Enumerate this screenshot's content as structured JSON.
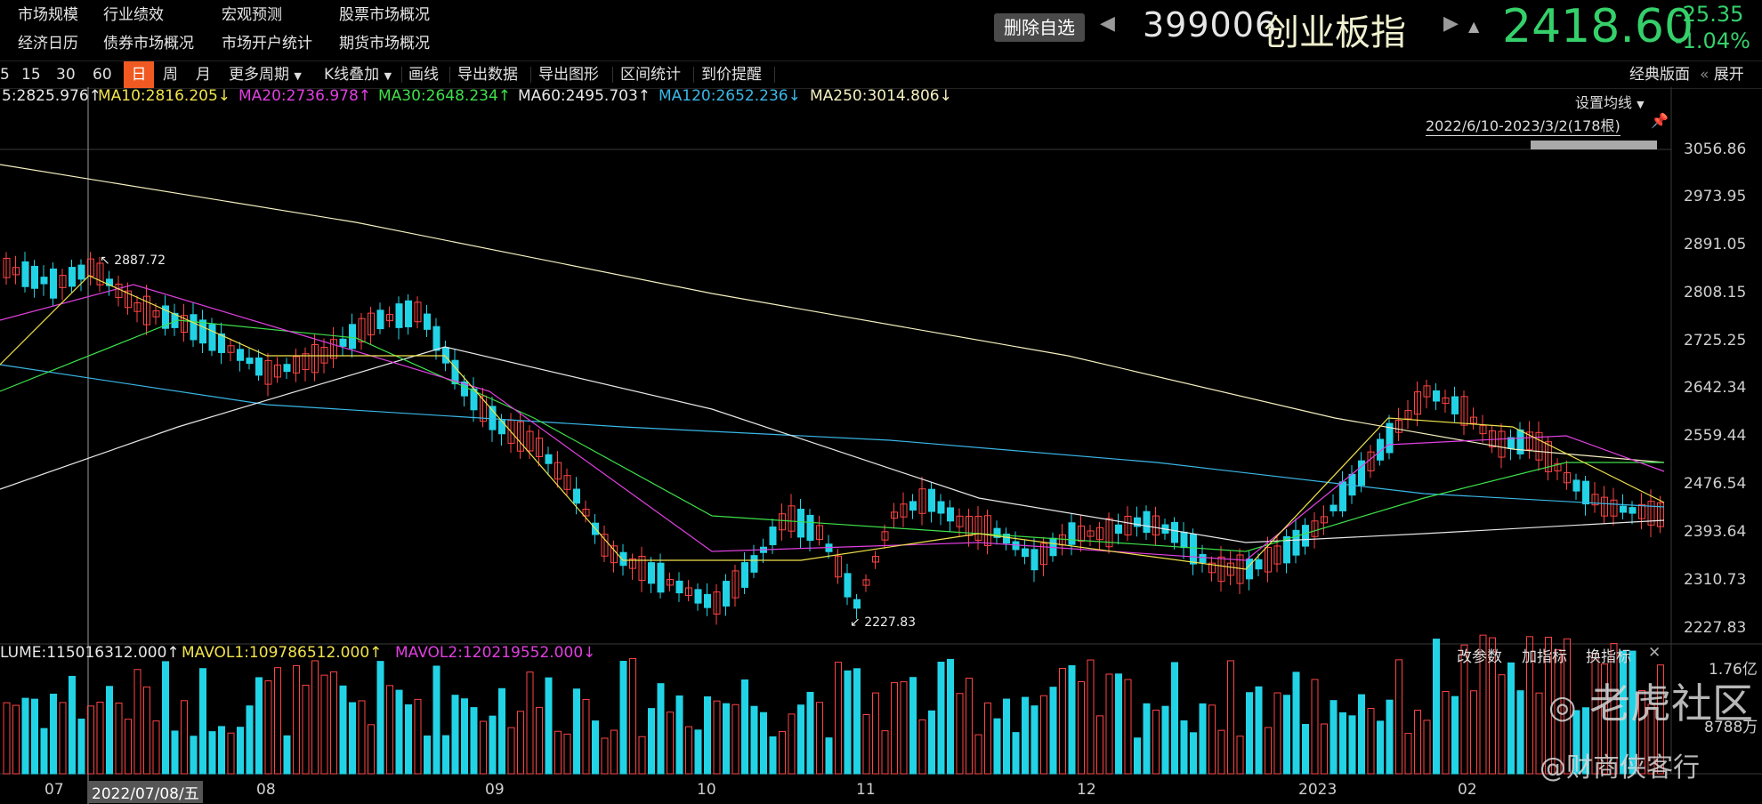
{
  "menu": {
    "row1": [
      "市场规模",
      "行业绩效",
      "宏观预测",
      "股票市场概况"
    ],
    "row2": [
      "经济日历",
      "债券市场概况",
      "市场开户统计",
      "期货市场概况"
    ]
  },
  "quote": {
    "delete_label": "删除自选",
    "code": "399006",
    "name": "创业板指",
    "price": "2418.60",
    "change": "-25.35",
    "change_pct": "-1.04%"
  },
  "toolbar": {
    "periods": [
      "5",
      "15",
      "30",
      "60",
      "日",
      "周",
      "月"
    ],
    "selected": "日",
    "more": "更多周期",
    "overlay": "K线叠加",
    "tools": [
      "画线",
      "导出数据",
      "导出图形",
      "区间统计",
      "到价提醒"
    ],
    "classic": "经典版面",
    "expand": "展开"
  },
  "ma_legend": [
    {
      "text": "5:2825.976↑",
      "color": "#e8e8e8"
    },
    {
      "text": "MA10:2816.205↓",
      "color": "#f2e34b"
    },
    {
      "text": "MA20:2736.978↑",
      "color": "#e040e0"
    },
    {
      "text": "MA30:2648.234↑",
      "color": "#3de04a"
    },
    {
      "text": "MA60:2495.703↑",
      "color": "#e8e8e8"
    },
    {
      "text": "MA120:2652.236↓",
      "color": "#3ab8e8"
    },
    {
      "text": "MA250:3014.806↓",
      "color": "#f5f0c0"
    }
  ],
  "ma_settings": "设置均线",
  "range_label": "2022/6/10-2023/3/2(178根)",
  "y_axis": [
    "3056.86",
    "2973.95",
    "2891.05",
    "2808.15",
    "2725.25",
    "2642.34",
    "2559.44",
    "2476.54",
    "2393.64",
    "2310.73",
    "2227.83"
  ],
  "max_marker": "2887.72",
  "min_marker": "2227.83",
  "volume_legend": [
    {
      "text": "LUME:115016312.000↑",
      "color": "#e8e8e8"
    },
    {
      "text": "MAVOL1:109786512.000↑",
      "color": "#f2e34b"
    },
    {
      "text": "MAVOL2:120219552.000↓",
      "color": "#e040e0"
    }
  ],
  "indicator_buttons": [
    "改参数",
    "加指标",
    "换指标"
  ],
  "volume_axis": [
    "1.76亿",
    "8788万"
  ],
  "x_axis": {
    "months": [
      "07",
      "08",
      "09",
      "10",
      "11",
      "12",
      "2023",
      "02"
    ],
    "cursor_date": "2022/07/08/五"
  },
  "watermark": {
    "brand": "老虎社区",
    "author": "@财商侠客行"
  },
  "colors": {
    "up": "#ff4444",
    "down": "#22d3e6",
    "price_down": "#35d06a",
    "selected": "#f05a22"
  }
}
